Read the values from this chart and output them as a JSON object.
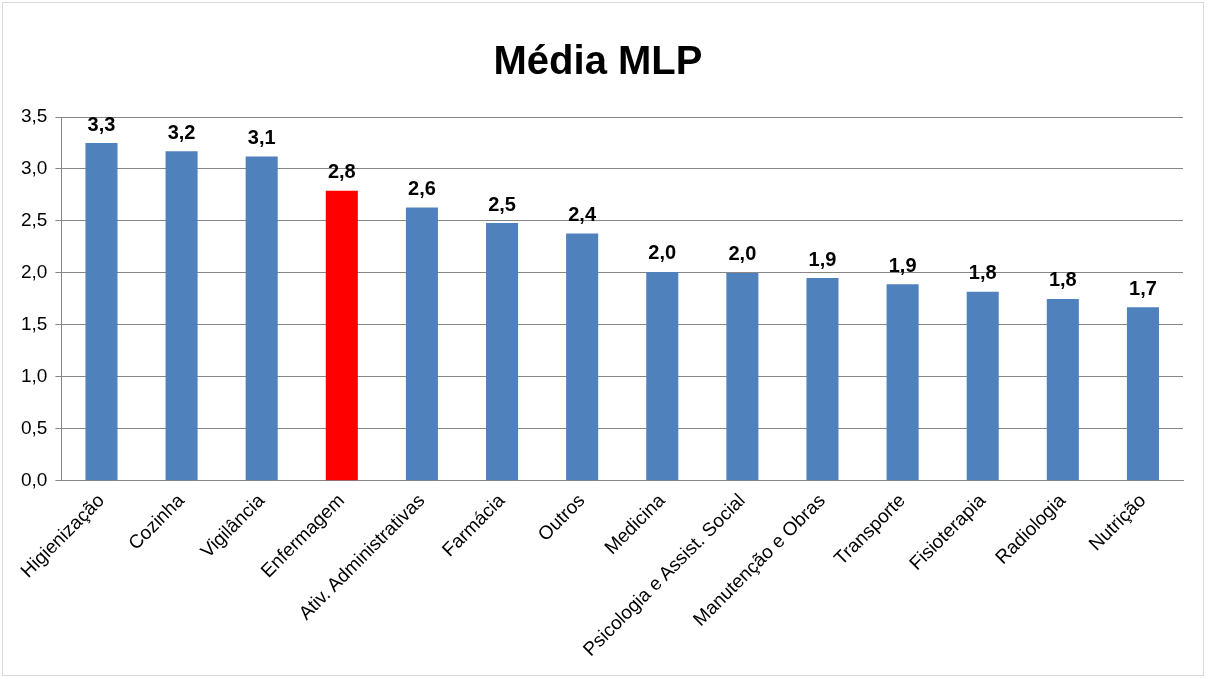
{
  "chart_data": {
    "type": "bar",
    "title": "Média MLP",
    "categories": [
      "Higienização",
      "Cozinha",
      "Vigilância",
      "Enfermagem",
      "Ativ. Administrativas",
      "Farmácia",
      "Outros",
      "Medicina",
      "Psicologia e Assist. Social",
      "Manutenção e Obras",
      "Transporte",
      "Fisioterapia",
      "Radiologia",
      "Nutrição"
    ],
    "values": [
      3.25,
      3.17,
      3.12,
      2.79,
      2.63,
      2.48,
      2.38,
      2.01,
      2.0,
      1.95,
      1.89,
      1.82,
      1.75,
      1.67
    ],
    "value_labels": [
      "3,3",
      "3,2",
      "3,1",
      "2,8",
      "2,6",
      "2,5",
      "2,4",
      "2,0",
      "2,0",
      "1,9",
      "1,9",
      "1,8",
      "1,8",
      "1,7"
    ],
    "colors": [
      "#4f81bd",
      "#4f81bd",
      "#4f81bd",
      "#ff0000",
      "#4f81bd",
      "#4f81bd",
      "#4f81bd",
      "#4f81bd",
      "#4f81bd",
      "#4f81bd",
      "#4f81bd",
      "#4f81bd",
      "#4f81bd",
      "#4f81bd"
    ],
    "ylim": [
      0,
      3.5
    ],
    "yticks": [
      {
        "value": 0,
        "label": "0,0"
      },
      {
        "value": 0.5,
        "label": "0,5"
      },
      {
        "value": 1,
        "label": "1,0"
      },
      {
        "value": 1.5,
        "label": "1,5"
      },
      {
        "value": 2,
        "label": "2,0"
      },
      {
        "value": 2.5,
        "label": "2,5"
      },
      {
        "value": 3,
        "label": "3,0"
      },
      {
        "value": 3.5,
        "label": "3,5"
      }
    ],
    "grid": "y",
    "legend": false
  }
}
